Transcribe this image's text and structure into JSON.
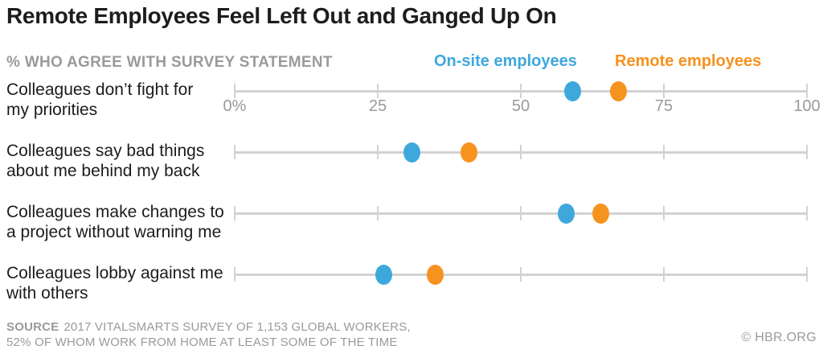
{
  "title": "Remote Employees Feel Left Out and Ganged Up On",
  "subtitle": "% WHO AGREE WITH SURVEY STATEMENT",
  "legend": [
    {
      "key": "onsite",
      "label": "On-site employees",
      "color": "#3EA8DC"
    },
    {
      "key": "remote",
      "label": "Remote employees",
      "color": "#F6921E"
    }
  ],
  "source": {
    "label": "SOURCE",
    "line1": "2017 VITALSMARTS SURVEY OF 1,153 GLOBAL WORKERS,",
    "line2": "52% OF WHOM WORK FROM HOME AT LEAST SOME OF THE TIME"
  },
  "copyright": "© HBR.ORG",
  "colors": {
    "onsite_blue": "#3EA8DC",
    "remote_orange": "#F6921E",
    "axis_gray": "#9a9a9a",
    "line_gray": "#d2d2d2",
    "text_dark": "#1c1c1c"
  },
  "chart_data": {
    "type": "scatter",
    "variant": "horizontal-dot-plot",
    "title": "Remote Employees Feel Left Out and Ganged Up On",
    "xlabel": "% who agree with survey statement",
    "xlim": [
      0,
      100
    ],
    "grid": false,
    "legend_position": "top",
    "categories": [
      "Colleagues don’t fight for my priorities",
      "Colleagues say bad things about me behind my back",
      "Colleagues make changes to a project without warning me",
      "Colleagues lobby against me with others"
    ],
    "category_lines": [
      [
        "Colleagues don’t fight for",
        "my priorities"
      ],
      [
        "Colleagues say bad things",
        "about me behind my back"
      ],
      [
        "Colleagues make changes to",
        "a project without warning me"
      ],
      [
        "Colleagues lobby against me",
        "with others"
      ]
    ],
    "series": [
      {
        "key": "onsite",
        "name": "On-site employees",
        "color": "#3EA8DC",
        "values": [
          59,
          31,
          58,
          26
        ]
      },
      {
        "key": "remote",
        "name": "Remote employees",
        "color": "#F6921E",
        "values": [
          67,
          41,
          64,
          35
        ]
      }
    ],
    "x_ticks": [
      {
        "value": 0,
        "label": "0%"
      },
      {
        "value": 25,
        "label": "25"
      },
      {
        "value": 50,
        "label": "50"
      },
      {
        "value": 75,
        "label": "75"
      },
      {
        "value": 100,
        "label": "100"
      }
    ]
  }
}
